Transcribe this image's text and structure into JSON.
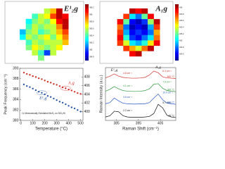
{
  "chart_data": [
    {
      "type": "heatmap",
      "title": "E¹₂g",
      "zlim": [
        384.7,
        386.3
      ],
      "zticks": [
        384.8,
        385.0,
        385.2,
        385.4,
        385.6,
        385.8,
        386.0,
        386.2
      ],
      "z": [
        [
          null,
          null,
          null,
          null,
          385.6,
          385.8,
          386.2,
          null,
          null
        ],
        [
          null,
          null,
          385.4,
          385.6,
          385.7,
          386.0,
          386.2,
          386.1,
          null
        ],
        [
          null,
          385.3,
          385.5,
          385.6,
          385.5,
          385.7,
          386.1,
          386.2,
          null
        ],
        [
          null,
          385.4,
          385.6,
          385.5,
          385.6,
          385.6,
          385.9,
          386.2,
          null
        ],
        [
          385.2,
          385.5,
          385.6,
          385.4,
          385.5,
          385.6,
          385.8,
          386.0,
          null
        ],
        [
          385.3,
          385.6,
          385.5,
          385.6,
          385.7,
          385.5,
          385.7,
          385.9,
          null
        ],
        [
          null,
          385.4,
          385.6,
          385.5,
          385.6,
          385.6,
          385.6,
          385.8,
          null
        ],
        [
          null,
          385.5,
          385.7,
          385.6,
          385.5,
          385.6,
          385.7,
          null,
          null
        ],
        [
          null,
          null,
          385.6,
          385.4,
          385.0,
          385.6,
          null,
          null,
          null
        ],
        [
          null,
          null,
          null,
          385.5,
          null,
          null,
          null,
          null,
          null
        ]
      ]
    },
    {
      "type": "heatmap",
      "title": "A₁g",
      "zlim": [
        404.4,
        406.1
      ],
      "zticks": [
        404.6,
        404.8,
        405.0,
        405.2,
        405.4,
        405.6,
        405.8,
        406.0
      ],
      "z": [
        [
          null,
          null,
          null,
          406.0,
          405.9,
          406.0,
          null,
          null,
          null
        ],
        [
          null,
          null,
          405.8,
          405.0,
          404.8,
          405.2,
          405.9,
          null,
          null
        ],
        [
          null,
          405.9,
          405.2,
          404.6,
          404.5,
          404.7,
          405.3,
          406.0,
          null
        ],
        [
          null,
          405.7,
          404.8,
          404.5,
          404.6,
          404.5,
          404.9,
          405.8,
          null
        ],
        [
          null,
          405.8,
          404.9,
          404.6,
          404.7,
          404.6,
          404.8,
          405.6,
          null
        ],
        [
          null,
          405.9,
          405.1,
          404.7,
          404.6,
          404.8,
          405.0,
          405.7,
          null
        ],
        [
          null,
          405.8,
          405.4,
          405.0,
          404.9,
          405.1,
          405.5,
          405.9,
          null
        ],
        [
          null,
          null,
          405.8,
          405.6,
          405.4,
          405.7,
          406.0,
          null,
          null
        ],
        [
          null,
          null,
          null,
          405.9,
          406.0,
          null,
          null,
          null,
          null
        ]
      ]
    },
    {
      "type": "scatter",
      "xlabel": "Temperature (°C)",
      "ylabel": "Peak Frequency (cm⁻¹)",
      "note": "1L Mechanically Exfoliated MoS₂ on SiO₂/Si",
      "xlim": [
        -10,
        520
      ],
      "xticks": [
        0,
        100,
        200,
        300,
        400,
        500
      ],
      "ylim": [
        380,
        390
      ],
      "yticks": [
        380,
        382,
        384,
        386,
        388,
        390
      ],
      "y2lim": [
        398,
        410
      ],
      "y2ticks": [
        400,
        402,
        404,
        406,
        408
      ],
      "x": [
        25,
        50,
        75,
        100,
        125,
        150,
        175,
        200,
        225,
        250,
        275,
        300,
        325,
        350,
        375,
        400,
        425,
        450,
        475,
        500
      ],
      "series": [
        {
          "name": "E¹₂g",
          "color": "#2b57a8",
          "values": [
            386.9,
            386.6,
            386.4,
            386.1,
            385.8,
            385.5,
            385.3,
            385.0,
            384.7,
            384.5,
            384.2,
            383.9,
            383.6,
            383.4,
            383.1,
            382.8,
            382.5,
            382.3,
            382.0,
            381.7
          ]
        },
        {
          "name": "A₁g",
          "color": "#d2302a",
          "axis": "y2",
          "values": [
            409.0,
            408.7,
            408.5,
            408.2,
            408.0,
            407.7,
            407.5,
            407.2,
            406.9,
            406.7,
            406.4,
            406.2,
            405.9,
            405.6,
            405.4,
            405.1,
            404.9,
            404.6,
            404.3,
            404.1
          ]
        }
      ]
    },
    {
      "type": "line",
      "xlabel": "Raman Shift (cm⁻¹)",
      "ylabel": "Raman Intensity (a.u.)",
      "peak_labels": [
        "E¹₂g",
        "A₁g"
      ],
      "xlim": [
        380,
        412
      ],
      "xticks": [
        385,
        395,
        405
      ],
      "ylim": [
        0,
        9.2
      ],
      "x": [
        380,
        382,
        384,
        386,
        388,
        390,
        392,
        394,
        396,
        398,
        400,
        402,
        404,
        406,
        408,
        410,
        412
      ],
      "series": [
        {
          "name": "25 °C",
          "color": "#111111",
          "fwhm_labels": [
            "2.2 cm⁻¹",
            "5.7 cm⁻¹"
          ],
          "values": [
            0.6,
            0.8,
            1.6,
            1.5,
            0.8,
            0.6,
            0.55,
            0.55,
            0.55,
            0.6,
            0.7,
            1.2,
            2.8,
            2.2,
            0.9,
            0.6,
            0.5
          ]
        },
        {
          "name": "100 °C",
          "color": "#2b57c8",
          "fwhm_labels": [
            "3.6 cm⁻¹",
            "10.0 cm⁻¹"
          ],
          "values": [
            2.9,
            3.1,
            3.9,
            3.4,
            3.0,
            2.9,
            2.85,
            2.85,
            2.9,
            2.9,
            3.1,
            3.9,
            4.6,
            3.6,
            3.0,
            2.9,
            2.8
          ]
        },
        {
          "name": "300 °C",
          "color": "#2e9a3a",
          "fwhm_labels": [
            "4.1 cm⁻¹",
            "7.5 cm⁻¹"
          ],
          "values": [
            5.1,
            5.4,
            5.9,
            5.5,
            5.2,
            5.1,
            5.05,
            5.05,
            5.1,
            5.2,
            5.5,
            6.3,
            6.4,
            5.6,
            5.2,
            5.1,
            5.0
          ]
        },
        {
          "name": "500 °C",
          "color": "#d2302a",
          "fwhm_labels": [
            "4.8 cm⁻¹",
            "6.3 cm⁻¹"
          ],
          "values": [
            7.4,
            7.7,
            8.1,
            7.7,
            7.5,
            7.4,
            7.35,
            7.35,
            7.4,
            7.5,
            7.9,
            8.6,
            8.3,
            7.6,
            7.4,
            7.35,
            7.3
          ]
        }
      ]
    }
  ]
}
